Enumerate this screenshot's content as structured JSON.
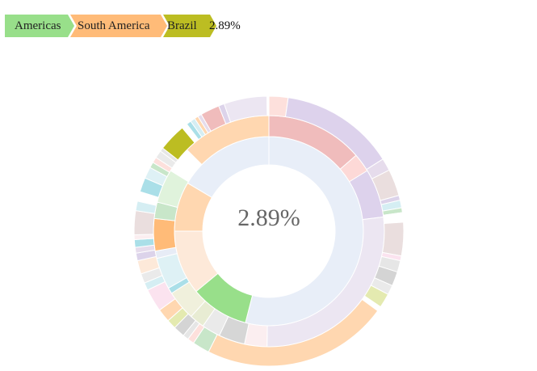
{
  "breadcrumb": {
    "items": [
      {
        "label": "Americas",
        "color": "#98df8a"
      },
      {
        "label": "South America",
        "color": "#ffbb78"
      },
      {
        "label": "Brazil",
        "color": "#bcbd22"
      }
    ],
    "percentage": "2.89%"
  },
  "center": {
    "percentage": "2.89%"
  },
  "chart_data": {
    "type": "sunburst",
    "title": "",
    "selected_path": [
      "Americas",
      "South America",
      "Brazil"
    ],
    "selected_share": 2.89,
    "rings": [
      {
        "level": 1,
        "segments": [
          {
            "name": "",
            "color": "#e8eef8",
            "value": 54.0
          },
          {
            "name": "Americas",
            "color": "#98df8a",
            "value": 10.0
          },
          {
            "name": "",
            "color": "#fde9d9",
            "value": 11.0
          },
          {
            "name": "",
            "color": "#ffd7b0",
            "value": 8.5
          },
          {
            "name": "",
            "color": "#e8eef8",
            "value": 16.5
          }
        ]
      },
      {
        "level": 2,
        "segments": [
          {
            "name": "",
            "color": "#f0bcbc",
            "value": 13.0
          },
          {
            "name": "",
            "color": "#fdd9d7",
            "value": 2.5
          },
          {
            "name": "",
            "color": "#ddd2ec",
            "value": 6.5
          },
          {
            "name": "",
            "color": "#ece6f2",
            "value": 26.0
          },
          {
            "name": "",
            "color": "#fbeef0",
            "value": 3.0
          },
          {
            "name": "",
            "color": "#d6d6d6",
            "value": 3.5
          },
          {
            "name": "",
            "color": "#eaeaea",
            "value": 2.5
          },
          {
            "name": "",
            "color": "#e8ecd3",
            "value": 2.0
          },
          {
            "name": "",
            "color": "#f0f0dc",
            "value": 4.0
          },
          {
            "name": "",
            "color": "#aadfe8",
            "value": 0.8
          },
          {
            "name": "",
            "color": "#def1f5",
            "value": 4.2
          },
          {
            "name": "",
            "color": "#e7ecf6",
            "value": 1.0
          },
          {
            "name": "South America",
            "color": "#ffbb78",
            "value": 4.3
          },
          {
            "name": "",
            "color": "#c8e6c9",
            "value": 2.2
          },
          {
            "name": "",
            "color": "#e0f3dc",
            "value": 4.5
          },
          {
            "name": "",
            "color": "#ffffff",
            "value": 3.5
          },
          {
            "name": "",
            "color": "#ffd7b0",
            "value": 12.0
          }
        ]
      },
      {
        "level": 3,
        "segments": [
          {
            "name": "",
            "color": "#fde0dc",
            "value": 2.0
          },
          {
            "name": "",
            "color": "#ddd2ec",
            "value": 12.0
          },
          {
            "name": "",
            "color": "#e6dcec",
            "value": 1.3
          },
          {
            "name": "",
            "color": "#eadede",
            "value": 2.8
          },
          {
            "name": "",
            "color": "#dcd3ea",
            "value": 0.5
          },
          {
            "name": "",
            "color": "#d5eef3",
            "value": 0.8
          },
          {
            "name": "",
            "color": "#c8e6c9",
            "value": 0.5
          },
          {
            "name": "",
            "color": "#ffffff",
            "value": 1.0
          },
          {
            "name": "",
            "color": "#eadede",
            "value": 3.5
          },
          {
            "name": "",
            "color": "#fbe3ef",
            "value": 0.5
          },
          {
            "name": "",
            "color": "#e6e6e6",
            "value": 1.2
          },
          {
            "name": "",
            "color": "#d4d4d4",
            "value": 1.5
          },
          {
            "name": "",
            "color": "#eaeaea",
            "value": 1.0
          },
          {
            "name": "",
            "color": "#e4eab0",
            "value": 1.5
          },
          {
            "name": "",
            "color": "#ffffff",
            "value": 0.5
          },
          {
            "name": "",
            "color": "#ffd7b0",
            "value": 19.5
          },
          {
            "name": "",
            "color": "#c8e6c9",
            "value": 1.8
          },
          {
            "name": "",
            "color": "#fde0dc",
            "value": 0.7
          },
          {
            "name": "",
            "color": "#e6e6e6",
            "value": 0.6
          },
          {
            "name": "",
            "color": "#d4d4d4",
            "value": 1.2
          },
          {
            "name": "",
            "color": "#e4eab0",
            "value": 1.0
          },
          {
            "name": "",
            "color": "#ffd7b0",
            "value": 1.4
          },
          {
            "name": "",
            "color": "#fbe3ef",
            "value": 2.4
          },
          {
            "name": "",
            "color": "#d5eef3",
            "value": 0.8
          },
          {
            "name": "",
            "color": "#eaeaea",
            "value": 1.0
          },
          {
            "name": "",
            "color": "#fde9d9",
            "value": 1.4
          },
          {
            "name": "",
            "color": "#dcd3ea",
            "value": 0.8
          },
          {
            "name": "",
            "color": "#e6dcec",
            "value": 0.6
          },
          {
            "name": "",
            "color": "#aadfe8",
            "value": 0.8
          },
          {
            "name": "",
            "color": "#fbeef0",
            "value": 0.5
          },
          {
            "name": "",
            "color": "#eadede",
            "value": 2.5
          },
          {
            "name": "",
            "color": "#d5eef3",
            "value": 1.0
          },
          {
            "name": "",
            "color": "#ffffff",
            "value": 1.0
          },
          {
            "name": "",
            "color": "#aadfe8",
            "value": 1.5
          },
          {
            "name": "",
            "color": "#def1f5",
            "value": 1.2
          },
          {
            "name": "",
            "color": "#c8e6c9",
            "value": 0.6
          },
          {
            "name": "",
            "color": "#fde0dc",
            "value": 0.6
          },
          {
            "name": "",
            "color": "#eaeaea",
            "value": 0.8
          },
          {
            "name": "",
            "color": "#e6e6e6",
            "value": 0.4
          },
          {
            "name": "Brazil",
            "color": "#bcbd22",
            "value": 2.9
          },
          {
            "name": "",
            "color": "#ffffff",
            "value": 0.6
          },
          {
            "name": "",
            "color": "#aadfe8",
            "value": 0.5
          },
          {
            "name": "",
            "color": "#d5eef3",
            "value": 0.5
          },
          {
            "name": "",
            "color": "#ffd7b0",
            "value": 0.4
          },
          {
            "name": "",
            "color": "#e6dcec",
            "value": 0.4
          },
          {
            "name": "",
            "color": "#f0bcbc",
            "value": 2.0
          },
          {
            "name": "",
            "color": "#dcd3ea",
            "value": 0.6
          },
          {
            "name": "",
            "color": "#ece6f2",
            "value": 4.5
          },
          {
            "name": "",
            "color": "#ffffff",
            "value": 0.2
          }
        ]
      }
    ]
  }
}
